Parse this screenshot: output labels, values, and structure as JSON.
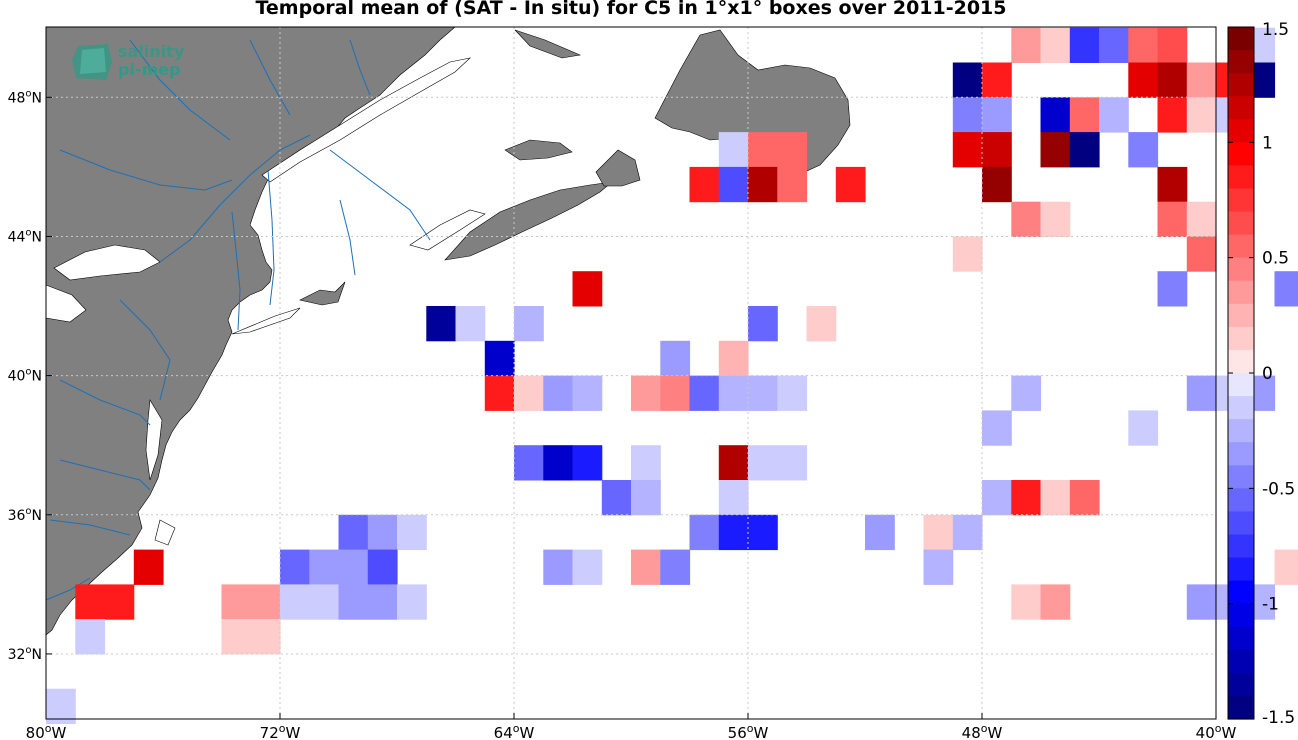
{
  "chart_data": {
    "type": "heatmap",
    "title": "Temporal mean of (SAT - In situ) for C5 in 1°x1° boxes over 2011-2015",
    "x_ticks": [
      "80°W",
      "72°W",
      "64°W",
      "56°W",
      "48°W",
      "40°W"
    ],
    "y_ticks": [
      "32°N",
      "36°N",
      "40°N",
      "44°N",
      "48°N"
    ],
    "lon_range": [
      -80,
      -40
    ],
    "lat_range": [
      30,
      50
    ],
    "grid": true,
    "colorbar": {
      "position": "right",
      "range": [
        -1.5,
        1.5
      ],
      "ticks": [
        "1.5",
        "1",
        "0.5",
        "0",
        "-0.5",
        "-1",
        "-1.5"
      ],
      "levels": 30,
      "negative_color": "#0000ff",
      "positive_color": "#ff0000",
      "extreme_neg": "#000080",
      "extreme_pos": "#7a0000"
    },
    "land_color": "#808080",
    "river_color": "#1f6fb4",
    "cells": [
      {
        "lon": -47,
        "lat": 49.5,
        "v": 0.3
      },
      {
        "lon": -46,
        "lat": 49.5,
        "v": 0.15
      },
      {
        "lon": -45,
        "lat": 49.5,
        "v": -0.75
      },
      {
        "lon": -44,
        "lat": 49.5,
        "v": -0.6
      },
      {
        "lon": -43,
        "lat": 49.5,
        "v": 0.5
      },
      {
        "lon": -42,
        "lat": 49.5,
        "v": 0.6
      },
      {
        "lon": -39,
        "lat": 49.5,
        "v": -0.1
      },
      {
        "lon": -49,
        "lat": 48.5,
        "v": -1.5
      },
      {
        "lon": -48,
        "lat": 48.5,
        "v": 0.9
      },
      {
        "lon": -43,
        "lat": 48.5,
        "v": 1.0
      },
      {
        "lon": -42,
        "lat": 48.5,
        "v": 1.2
      },
      {
        "lon": -41,
        "lat": 48.5,
        "v": 0.3
      },
      {
        "lon": -40,
        "lat": 48.5,
        "v": 0.9
      },
      {
        "lon": -39,
        "lat": 48.5,
        "v": -1.5
      },
      {
        "lon": -49,
        "lat": 47.5,
        "v": -0.5
      },
      {
        "lon": -48,
        "lat": 47.5,
        "v": -0.35
      },
      {
        "lon": -46,
        "lat": 47.5,
        "v": -1.2
      },
      {
        "lon": -45,
        "lat": 47.5,
        "v": 0.55
      },
      {
        "lon": -44,
        "lat": 47.5,
        "v": -0.25
      },
      {
        "lon": -42,
        "lat": 47.5,
        "v": 0.85
      },
      {
        "lon": -41,
        "lat": 47.5,
        "v": 0.15
      },
      {
        "lon": -40,
        "lat": 47.5,
        "v": -0.15
      },
      {
        "lon": -57,
        "lat": 46.5,
        "v": -0.1
      },
      {
        "lon": -56,
        "lat": 46.5,
        "v": 0.5
      },
      {
        "lon": -55,
        "lat": 46.5,
        "v": 0.5
      },
      {
        "lon": -49,
        "lat": 46.5,
        "v": 1.0
      },
      {
        "lon": -48,
        "lat": 46.5,
        "v": 1.1
      },
      {
        "lon": -46,
        "lat": 46.5,
        "v": 1.4
      },
      {
        "lon": -45,
        "lat": 46.5,
        "v": -1.5
      },
      {
        "lon": -43,
        "lat": 46.5,
        "v": -0.45
      },
      {
        "lon": -58,
        "lat": 45.5,
        "v": 0.85
      },
      {
        "lon": -57,
        "lat": 45.5,
        "v": -0.65
      },
      {
        "lon": -56,
        "lat": 45.5,
        "v": 1.25
      },
      {
        "lon": -55,
        "lat": 45.5,
        "v": 0.5
      },
      {
        "lon": -53,
        "lat": 45.5,
        "v": 0.85
      },
      {
        "lon": -48,
        "lat": 45.5,
        "v": 1.4
      },
      {
        "lon": -42,
        "lat": 45.5,
        "v": 1.2
      },
      {
        "lon": -47,
        "lat": 44.5,
        "v": 0.45
      },
      {
        "lon": -46,
        "lat": 44.5,
        "v": 0.15
      },
      {
        "lon": -42,
        "lat": 44.5,
        "v": 0.55
      },
      {
        "lon": -41,
        "lat": 44.5,
        "v": 0.15
      },
      {
        "lon": -49,
        "lat": 43.5,
        "v": 0.15
      },
      {
        "lon": -41,
        "lat": 43.5,
        "v": 0.5
      },
      {
        "lon": -62,
        "lat": 42.5,
        "v": 1.0
      },
      {
        "lon": -42,
        "lat": 42.5,
        "v": -0.5
      },
      {
        "lon": -38,
        "lat": 42.5,
        "v": -0.45
      },
      {
        "lon": -67,
        "lat": 41.5,
        "v": -1.35
      },
      {
        "lon": -66,
        "lat": 41.5,
        "v": -0.1
      },
      {
        "lon": -64,
        "lat": 41.5,
        "v": -0.25
      },
      {
        "lon": -56,
        "lat": 41.5,
        "v": -0.55
      },
      {
        "lon": -54,
        "lat": 41.5,
        "v": 0.15
      },
      {
        "lon": -65,
        "lat": 40.5,
        "v": -1.1
      },
      {
        "lon": -59,
        "lat": 40.5,
        "v": -0.35
      },
      {
        "lon": -57,
        "lat": 40.5,
        "v": 0.25
      },
      {
        "lon": -65,
        "lat": 39.5,
        "v": 0.9
      },
      {
        "lon": -64,
        "lat": 39.5,
        "v": 0.15
      },
      {
        "lon": -63,
        "lat": 39.5,
        "v": -0.35
      },
      {
        "lon": -62,
        "lat": 39.5,
        "v": -0.25
      },
      {
        "lon": -60,
        "lat": 39.5,
        "v": 0.3
      },
      {
        "lon": -59,
        "lat": 39.5,
        "v": 0.45
      },
      {
        "lon": -58,
        "lat": 39.5,
        "v": -0.6
      },
      {
        "lon": -57,
        "lat": 39.5,
        "v": -0.25
      },
      {
        "lon": -56,
        "lat": 39.5,
        "v": -0.25
      },
      {
        "lon": -55,
        "lat": 39.5,
        "v": -0.1
      },
      {
        "lon": -47,
        "lat": 39.5,
        "v": -0.25
      },
      {
        "lon": -41,
        "lat": 39.5,
        "v": -0.3
      },
      {
        "lon": -40,
        "lat": 39.5,
        "v": -0.15
      },
      {
        "lon": -39,
        "lat": 39.5,
        "v": -0.4
      },
      {
        "lon": -48,
        "lat": 38.5,
        "v": -0.25
      },
      {
        "lon": -43,
        "lat": 38.5,
        "v": -0.15
      },
      {
        "lon": -64,
        "lat": 37.5,
        "v": -0.6
      },
      {
        "lon": -63,
        "lat": 37.5,
        "v": -1.1
      },
      {
        "lon": -62,
        "lat": 37.5,
        "v": -0.8
      },
      {
        "lon": -60,
        "lat": 37.5,
        "v": -0.1
      },
      {
        "lon": -57,
        "lat": 37.5,
        "v": 1.2
      },
      {
        "lon": -56,
        "lat": 37.5,
        "v": -0.1
      },
      {
        "lon": -55,
        "lat": 37.5,
        "v": -0.1
      },
      {
        "lon": -61,
        "lat": 36.5,
        "v": -0.6
      },
      {
        "lon": -60,
        "lat": 36.5,
        "v": -0.25
      },
      {
        "lon": -57,
        "lat": 36.5,
        "v": -0.1
      },
      {
        "lon": -48,
        "lat": 36.5,
        "v": -0.25
      },
      {
        "lon": -47,
        "lat": 36.5,
        "v": 0.85
      },
      {
        "lon": -46,
        "lat": 36.5,
        "v": 0.15
      },
      {
        "lon": -45,
        "lat": 36.5,
        "v": 0.55
      },
      {
        "lon": -70,
        "lat": 35.5,
        "v": -0.55
      },
      {
        "lon": -69,
        "lat": 35.5,
        "v": -0.35
      },
      {
        "lon": -68,
        "lat": 35.5,
        "v": -0.1
      },
      {
        "lon": -58,
        "lat": 35.5,
        "v": -0.45
      },
      {
        "lon": -57,
        "lat": 35.5,
        "v": -0.8
      },
      {
        "lon": -56,
        "lat": 35.5,
        "v": -0.8
      },
      {
        "lon": -52,
        "lat": 35.5,
        "v": -0.4
      },
      {
        "lon": -50,
        "lat": 35.5,
        "v": 0.15
      },
      {
        "lon": -49,
        "lat": 35.5,
        "v": -0.25
      },
      {
        "lon": -77,
        "lat": 34.5,
        "v": 1.0
      },
      {
        "lon": -72,
        "lat": 34.5,
        "v": -0.55
      },
      {
        "lon": -71,
        "lat": 34.5,
        "v": -0.3
      },
      {
        "lon": -70,
        "lat": 34.5,
        "v": -0.3
      },
      {
        "lon": -69,
        "lat": 34.5,
        "v": -0.7
      },
      {
        "lon": -63,
        "lat": 34.5,
        "v": -0.35
      },
      {
        "lon": -62,
        "lat": 34.5,
        "v": -0.1
      },
      {
        "lon": -60,
        "lat": 34.5,
        "v": 0.3
      },
      {
        "lon": -59,
        "lat": 34.5,
        "v": -0.45
      },
      {
        "lon": -50,
        "lat": 34.5,
        "v": -0.25
      },
      {
        "lon": -38,
        "lat": 34.5,
        "v": 0.15
      },
      {
        "lon": -79,
        "lat": 33.5,
        "v": 0.85
      },
      {
        "lon": -78,
        "lat": 33.5,
        "v": 0.9
      },
      {
        "lon": -74,
        "lat": 33.5,
        "v": 0.4
      },
      {
        "lon": -73,
        "lat": 33.5,
        "v": 0.3
      },
      {
        "lon": -72,
        "lat": 33.5,
        "v": -0.1
      },
      {
        "lon": -71,
        "lat": 33.5,
        "v": -0.1
      },
      {
        "lon": -70,
        "lat": 33.5,
        "v": -0.3
      },
      {
        "lon": -69,
        "lat": 33.5,
        "v": -0.3
      },
      {
        "lon": -68,
        "lat": 33.5,
        "v": -0.15
      },
      {
        "lon": -47,
        "lat": 33.5,
        "v": 0.15
      },
      {
        "lon": -46,
        "lat": 33.5,
        "v": 0.3
      },
      {
        "lon": -41,
        "lat": 33.5,
        "v": -0.3
      },
      {
        "lon": -40,
        "lat": 33.5,
        "v": -0.25
      },
      {
        "lon": -39,
        "lat": 33.5,
        "v": -0.25
      },
      {
        "lon": -74,
        "lat": 32.5,
        "v": 0.15
      },
      {
        "lon": -73,
        "lat": 32.5,
        "v": 0.15
      },
      {
        "lon": -79,
        "lat": 32.5,
        "v": -0.1
      },
      {
        "lon": -80,
        "lat": 30.5,
        "v": -0.1
      }
    ]
  },
  "logo": {
    "line1": "salinity",
    "line2": "pi-mep"
  }
}
